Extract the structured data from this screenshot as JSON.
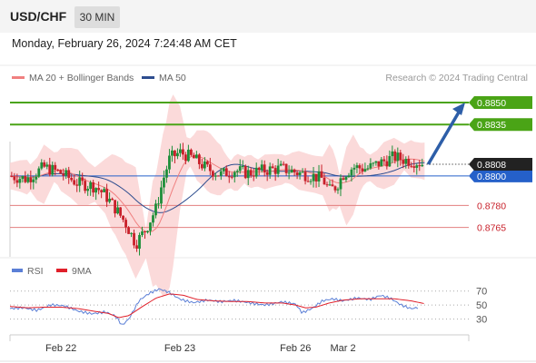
{
  "header": {
    "pair": "USD/CHF",
    "timeframe": "30 MIN"
  },
  "datetime": "Monday, February 26, 2024 7:24:48 AM CET",
  "legend": {
    "ma20_label": "MA 20 + Bollinger Bands",
    "ma50_label": "MA 50",
    "ma20_color": "#f08080",
    "ma50_color": "#2e4d8f"
  },
  "credit": "Research © 2024 Trading Central",
  "rsi_legend": {
    "rsi_label": "RSI",
    "ma_label": "9MA",
    "rsi_color": "#5b7fd6",
    "ma_color": "#e0202a"
  },
  "colors": {
    "up": "#1e8f3a",
    "down": "#c8202a",
    "target": "#4aa416",
    "pivot": "#2560c9",
    "support": "#e37f7f",
    "price": "#222222",
    "arrow": "#2d5ea8",
    "bollinger": "#fad4d4"
  },
  "chart_data": [
    {
      "type": "candlestick",
      "title": "USD/CHF 30 MIN",
      "ylim": [
        0.8745,
        0.8858
      ],
      "x_ticks": [
        "Feb 22",
        "Feb 23",
        "Feb 26",
        "Mar 2"
      ],
      "current_price": "0.8808",
      "levels": [
        {
          "label": "0.8850",
          "value": 0.885,
          "kind": "target"
        },
        {
          "label": "0.8835",
          "value": 0.8835,
          "kind": "target"
        },
        {
          "label": "0.8800",
          "value": 0.88,
          "kind": "pivot"
        },
        {
          "label": "0.8780",
          "value": 0.878,
          "kind": "support"
        },
        {
          "label": "0.8765",
          "value": 0.8765,
          "kind": "support"
        }
      ],
      "price_path": [
        [
          0,
          0.88
        ],
        [
          10,
          0.8798
        ],
        [
          20,
          0.8806
        ],
        [
          30,
          0.8802
        ],
        [
          40,
          0.8795
        ],
        [
          50,
          0.8793
        ],
        [
          56,
          0.8787
        ],
        [
          62,
          0.8778
        ],
        [
          68,
          0.8768
        ],
        [
          74,
          0.8754
        ],
        [
          80,
          0.8764
        ],
        [
          86,
          0.8778
        ],
        [
          90,
          0.8797
        ],
        [
          94,
          0.8812
        ],
        [
          100,
          0.8816
        ],
        [
          108,
          0.8812
        ],
        [
          116,
          0.8805
        ],
        [
          124,
          0.8801
        ],
        [
          132,
          0.8804
        ],
        [
          140,
          0.8802
        ],
        [
          150,
          0.8804
        ],
        [
          160,
          0.8805
        ],
        [
          170,
          0.8802
        ],
        [
          178,
          0.88
        ],
        [
          184,
          0.8798
        ],
        [
          188,
          0.879
        ],
        [
          192,
          0.8793
        ],
        [
          196,
          0.8801
        ],
        [
          202,
          0.8806
        ],
        [
          210,
          0.8805
        ],
        [
          218,
          0.8809
        ],
        [
          226,
          0.8813
        ],
        [
          232,
          0.8811
        ],
        [
          238,
          0.881
        ],
        [
          244,
          0.8808
        ]
      ],
      "x_domain": [
        0,
        270
      ],
      "tick_positions": [
        30,
        100,
        168,
        196
      ]
    },
    {
      "type": "line",
      "title": "RSI",
      "ylim": [
        10,
        80
      ],
      "y_ticks": [
        70,
        50,
        30
      ],
      "series": [
        {
          "name": "RSI",
          "values_at_x": [
            [
              0,
              45
            ],
            [
              8,
              48
            ],
            [
              16,
              44
            ],
            [
              24,
              50
            ],
            [
              32,
              47
            ],
            [
              40,
              40
            ],
            [
              48,
              38
            ],
            [
              56,
              42
            ],
            [
              62,
              36
            ],
            [
              66,
              22
            ],
            [
              70,
              30
            ],
            [
              76,
              55
            ],
            [
              82,
              65
            ],
            [
              88,
              72
            ],
            [
              94,
              68
            ],
            [
              100,
              60
            ],
            [
              108,
              55
            ],
            [
              116,
              57
            ],
            [
              124,
              53
            ],
            [
              132,
              55
            ],
            [
              140,
              54
            ],
            [
              150,
              52
            ],
            [
              160,
              55
            ],
            [
              168,
              50
            ],
            [
              172,
              37
            ],
            [
              178,
              44
            ],
            [
              184,
              56
            ],
            [
              190,
              60
            ],
            [
              196,
              58
            ],
            [
              204,
              61
            ],
            [
              212,
              57
            ],
            [
              218,
              62
            ],
            [
              224,
              58
            ],
            [
              230,
              50
            ],
            [
              236,
              46
            ],
            [
              240,
              48
            ]
          ]
        },
        {
          "name": "9MA",
          "values_at_x": [
            [
              0,
              48
            ],
            [
              10,
              46
            ],
            [
              20,
              47
            ],
            [
              30,
              47
            ],
            [
              40,
              45
            ],
            [
              50,
              41
            ],
            [
              58,
              38
            ],
            [
              64,
              32
            ],
            [
              70,
              35
            ],
            [
              78,
              48
            ],
            [
              86,
              60
            ],
            [
              94,
              66
            ],
            [
              102,
              64
            ],
            [
              110,
              58
            ],
            [
              120,
              56
            ],
            [
              130,
              55
            ],
            [
              140,
              55
            ],
            [
              150,
              53
            ],
            [
              160,
              53
            ],
            [
              168,
              50
            ],
            [
              174,
              46
            ],
            [
              180,
              47
            ],
            [
              188,
              53
            ],
            [
              196,
              57
            ],
            [
              206,
              59
            ],
            [
              216,
              59
            ],
            [
              226,
              59
            ],
            [
              236,
              56
            ],
            [
              244,
              52
            ]
          ]
        }
      ]
    }
  ]
}
